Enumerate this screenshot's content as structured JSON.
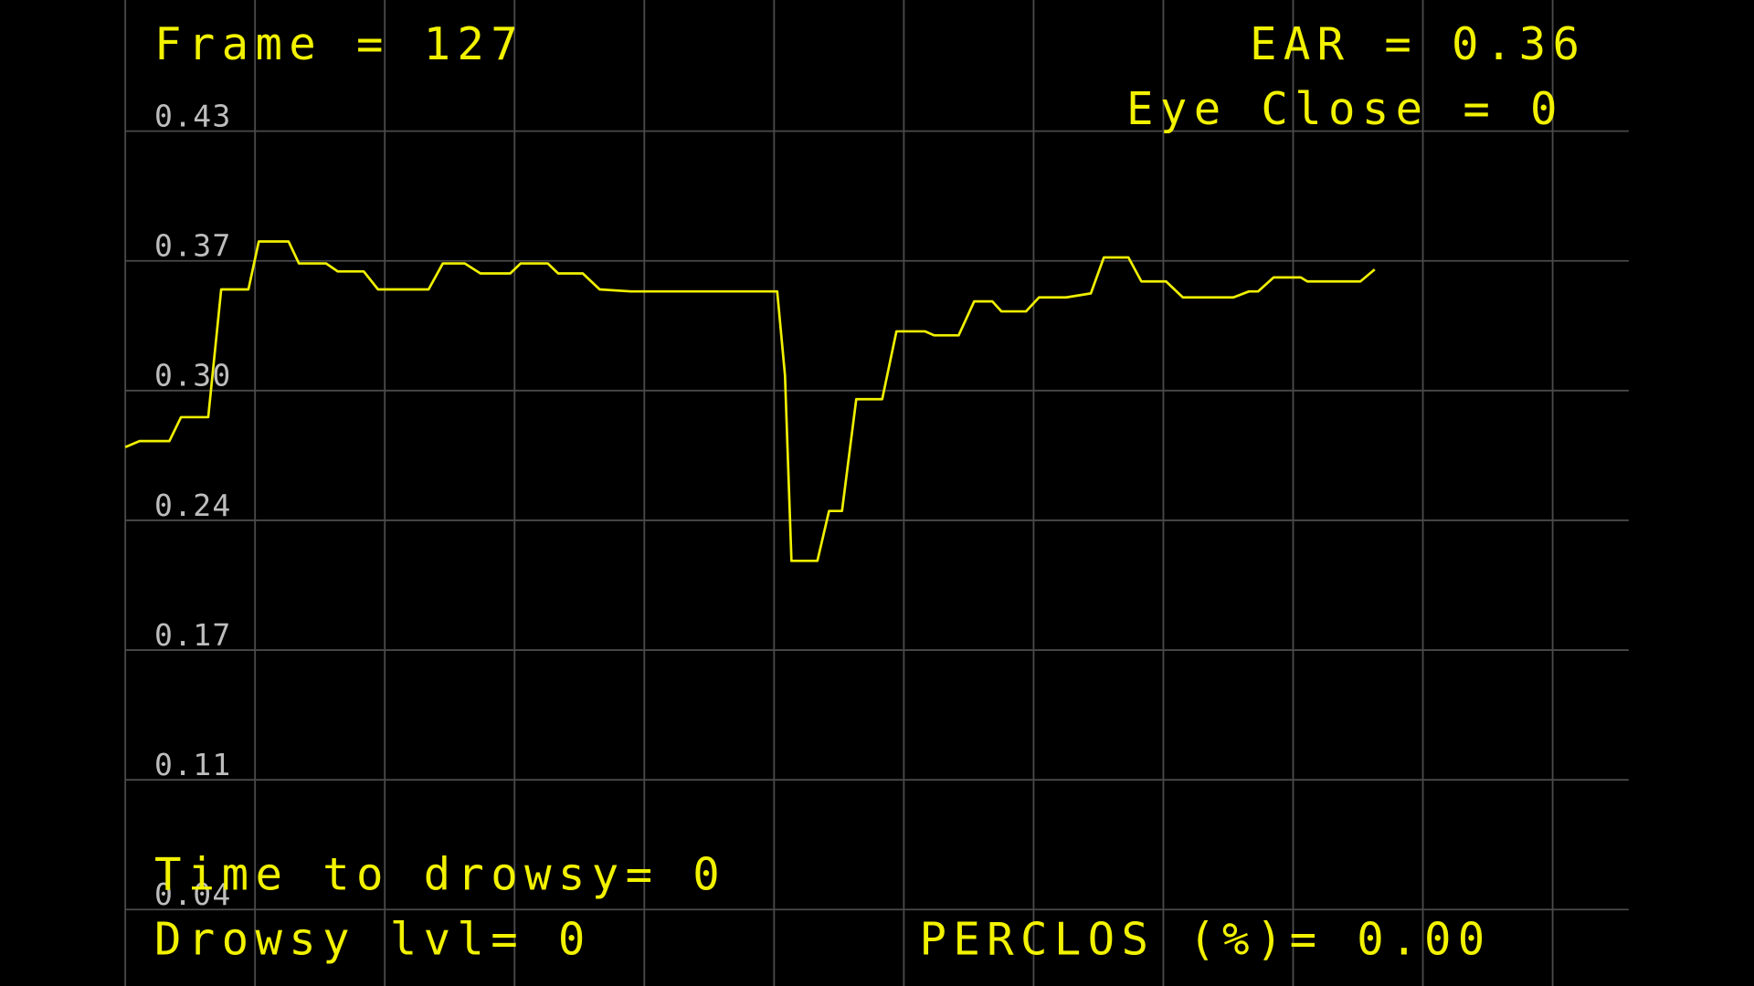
{
  "chart_data": {
    "type": "line",
    "annotations": [
      "Frame = 127",
      "EAR = 0.36",
      "Eye Close = 0",
      "Time to drowsy= 0",
      "Drowsy lvl= 0",
      "PERCLOS (%)= 0.00"
    ],
    "xlim": [
      0,
      116
    ],
    "ylim": [
      0.005,
      0.499
    ],
    "yticks": [
      {
        "value": 0.4333,
        "label": "0.43"
      },
      {
        "value": 0.3683,
        "label": "0.37"
      },
      {
        "value": 0.3033,
        "label": "0.30"
      },
      {
        "value": 0.2383,
        "label": "0.24"
      },
      {
        "value": 0.1733,
        "label": "0.17"
      },
      {
        "value": 0.1083,
        "label": "0.11"
      },
      {
        "value": 0.0433,
        "label": "0.04"
      }
    ],
    "grid": true,
    "series": [
      {
        "color": "#f0f000",
        "x": [
          0,
          1.1,
          3.4,
          4.3,
          6.4,
          7.4,
          9.5,
          10.3,
          12.6,
          13.4,
          15.5,
          16.4,
          18.4,
          19.5,
          23.4,
          24.5,
          26.2,
          27.4,
          29.7,
          30.5,
          32.6,
          33.4,
          35.3,
          36.6,
          39.0,
          50.3,
          50.9,
          51.4,
          53.4,
          54.3,
          55.3,
          56.4,
          58.4,
          59.5,
          61.7,
          62.4,
          64.3,
          65.5,
          66.9,
          67.6,
          69.5,
          70.5,
          72.6,
          74.5,
          75.5,
          77.4,
          78.4,
          80.3,
          81.6,
          85.5,
          86.7,
          87.4,
          88.6,
          90.7,
          91.2,
          95.3,
          96.4
        ],
        "values": [
          0.275,
          0.278,
          0.278,
          0.29,
          0.29,
          0.354,
          0.354,
          0.378,
          0.378,
          0.367,
          0.367,
          0.363,
          0.363,
          0.354,
          0.354,
          0.367,
          0.367,
          0.362,
          0.362,
          0.367,
          0.367,
          0.362,
          0.362,
          0.354,
          0.353,
          0.353,
          0.311,
          0.218,
          0.218,
          0.243,
          0.243,
          0.299,
          0.299,
          0.333,
          0.333,
          0.331,
          0.331,
          0.348,
          0.348,
          0.343,
          0.343,
          0.35,
          0.35,
          0.352,
          0.37,
          0.37,
          0.358,
          0.358,
          0.35,
          0.35,
          0.353,
          0.353,
          0.36,
          0.36,
          0.358,
          0.358,
          0.364
        ]
      }
    ]
  }
}
